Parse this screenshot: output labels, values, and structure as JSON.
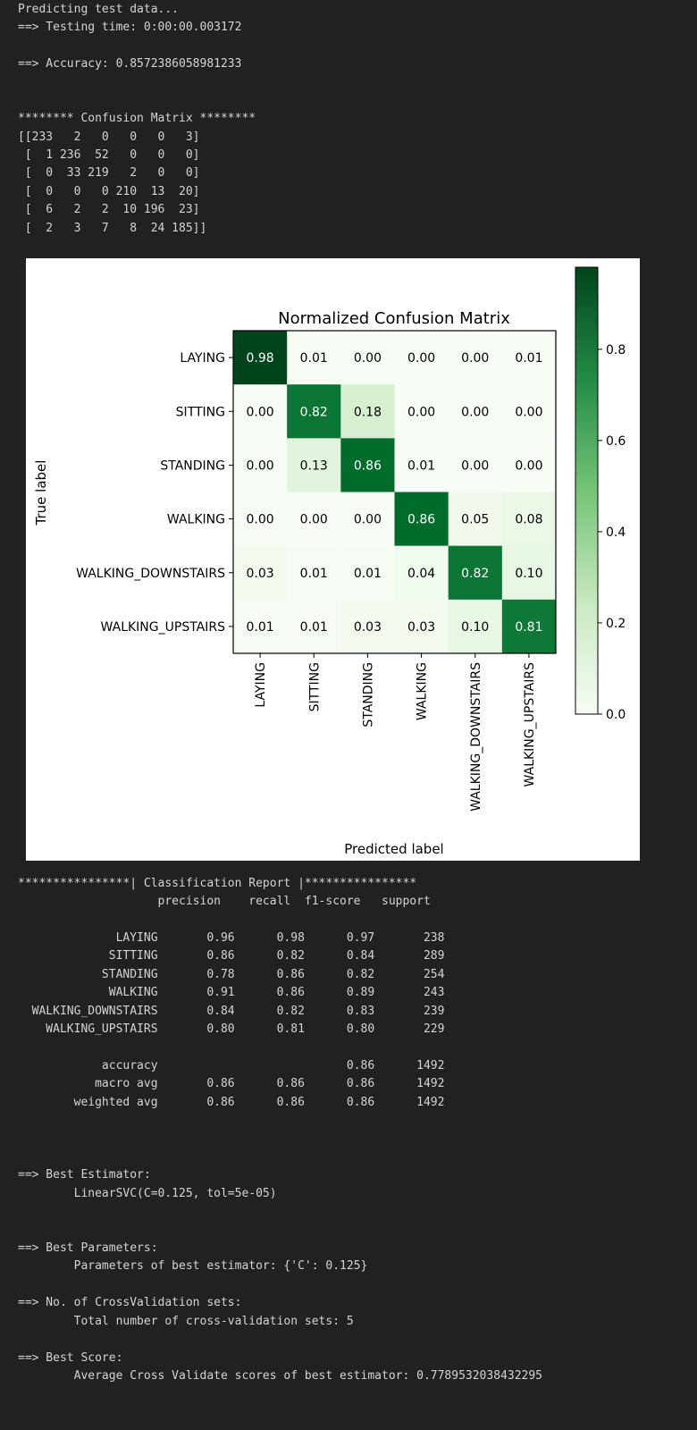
{
  "prediction": {
    "predicting": "Predicting test data...",
    "testing_time": "==> Testing time: 0:00:00.003172",
    "accuracy": "==> Accuracy: 0.8572386058981233"
  },
  "confusion_text": {
    "header": "******** Confusion Matrix ********",
    "rows": [
      "[[233   2   0   0   0   3]",
      " [  1 236  52   0   0   0]",
      " [  0  33 219   2   0   0]",
      " [  0   0   0 210  13  20]",
      " [  6   2   2  10 196  23]",
      " [  2   3   7   8  24 185]]"
    ]
  },
  "chart_data": {
    "type": "heatmap",
    "title": "Normalized Confusion Matrix",
    "xlabel": "Predicted label",
    "ylabel": "True label",
    "labels": [
      "LAYING",
      "SITTING",
      "STANDING",
      "WALKING",
      "WALKING_DOWNSTAIRS",
      "WALKING_UPSTAIRS"
    ],
    "values": [
      [
        0.98,
        0.01,
        0.0,
        0.0,
        0.0,
        0.01
      ],
      [
        0.0,
        0.82,
        0.18,
        0.0,
        0.0,
        0.0
      ],
      [
        0.0,
        0.13,
        0.86,
        0.01,
        0.0,
        0.0
      ],
      [
        0.0,
        0.0,
        0.0,
        0.86,
        0.05,
        0.08
      ],
      [
        0.03,
        0.01,
        0.01,
        0.04,
        0.82,
        0.1
      ],
      [
        0.01,
        0.01,
        0.03,
        0.03,
        0.1,
        0.81
      ]
    ],
    "colorbar": {
      "min": 0.0,
      "max": 0.98,
      "ticks": [
        "0.0",
        "0.2",
        "0.4",
        "0.6",
        "0.8"
      ]
    },
    "colormap": "Greens"
  },
  "report": {
    "header": "****************| Classification Report |****************",
    "columns": "                    precision    recall  f1-score   support",
    "rows": [
      "              LAYING       0.96      0.98      0.97       238",
      "             SITTING       0.86      0.82      0.84       289",
      "            STANDING       0.78      0.86      0.82       254",
      "             WALKING       0.91      0.86      0.89       243",
      "  WALKING_DOWNSTAIRS       0.84      0.82      0.83       239",
      "    WALKING_UPSTAIRS       0.80      0.81      0.80       229"
    ],
    "summary": [
      "            accuracy                           0.86      1492",
      "           macro avg       0.86      0.86      0.86      1492",
      "        weighted avg       0.86      0.86      0.86      1492"
    ]
  },
  "results": {
    "best_estimator_label": "==> Best Estimator:",
    "best_estimator_value": "        LinearSVC(C=0.125, tol=5e-05)",
    "best_params_label": "==> Best Parameters:",
    "best_params_value": "        Parameters of best estimator: {'C': 0.125}",
    "cv_sets_label": "==> No. of CrossValidation sets:",
    "cv_sets_value": "        Total number of cross-validation sets: 5",
    "best_score_label": "==> Best Score:",
    "best_score_value": "        Average Cross Validate scores of best estimator: 0.7789532038432295"
  }
}
